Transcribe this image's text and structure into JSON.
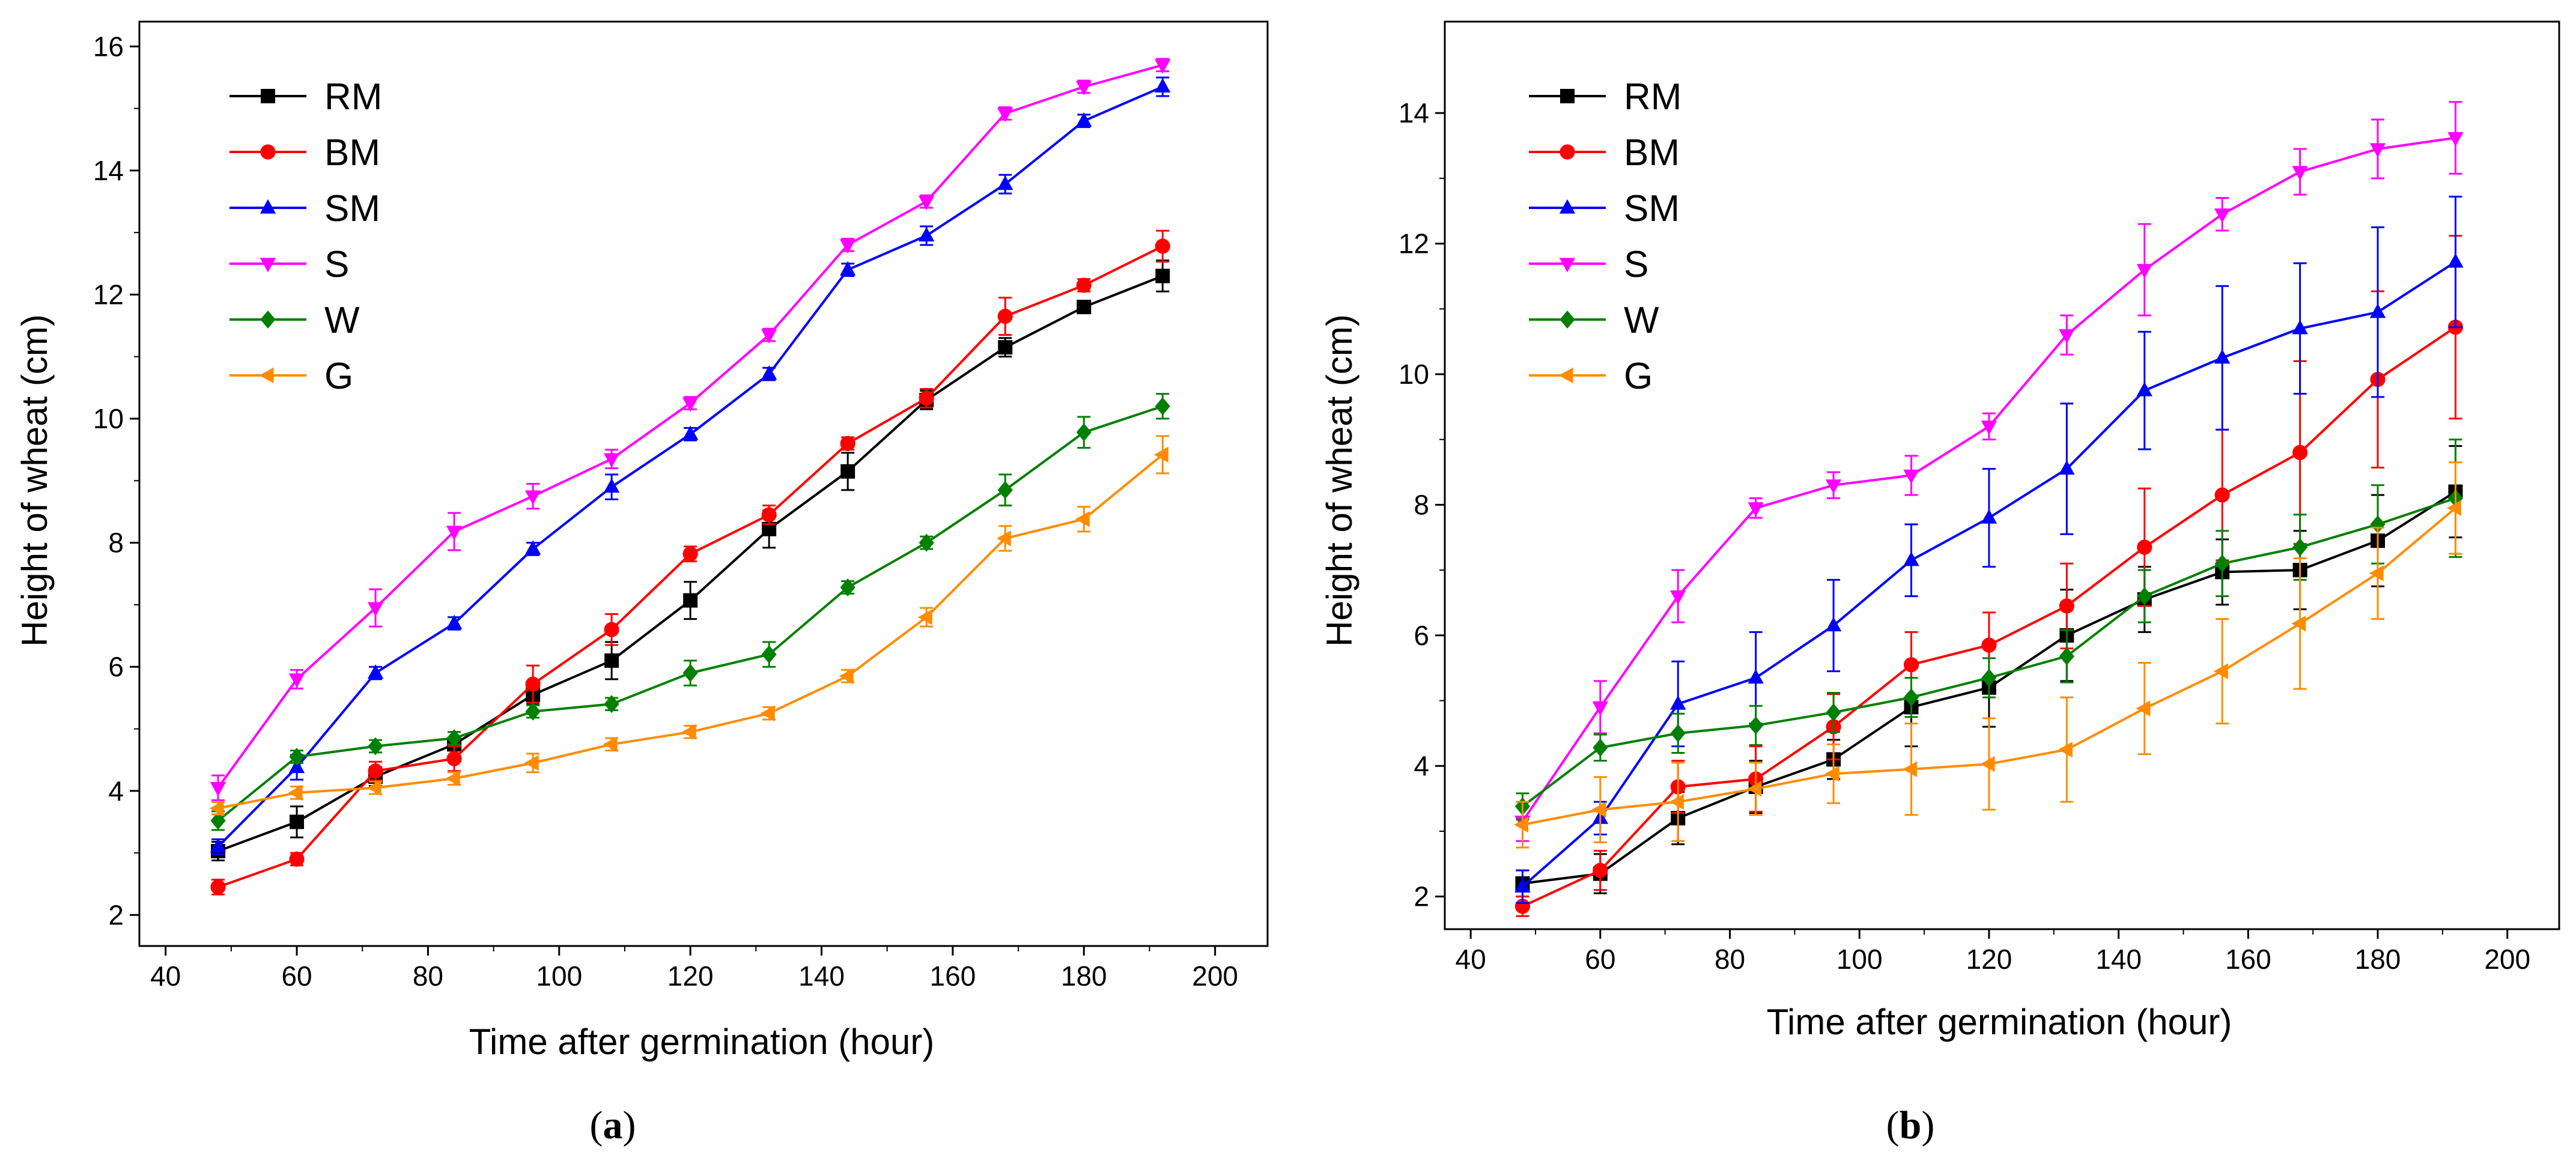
{
  "chart_data": [
    {
      "type": "line",
      "panel_label": "a",
      "xlabel": "Time after germination (hour)",
      "ylabel": "Height of wheat (cm)",
      "xlim": [
        36,
        208
      ],
      "ylim": [
        1.5,
        16.4
      ],
      "xticks": [
        40,
        60,
        80,
        100,
        120,
        140,
        160,
        180,
        200
      ],
      "yticks": [
        2,
        4,
        6,
        8,
        10,
        12,
        14,
        16
      ],
      "x": [
        48,
        60,
        72,
        84,
        96,
        108,
        120,
        132,
        144,
        156,
        168,
        180,
        192
      ],
      "series": [
        {
          "name": "RM",
          "color": "#000000",
          "marker": "square",
          "values": [
            3.03,
            3.5,
            4.23,
            4.75,
            5.55,
            6.1,
            7.07,
            8.22,
            9.15,
            10.3,
            11.15,
            11.8,
            12.3
          ],
          "errors": [
            0.15,
            0.25,
            0.15,
            0.1,
            0.15,
            0.3,
            0.3,
            0.3,
            0.3,
            0.15,
            0.15,
            0.1,
            0.25
          ]
        },
        {
          "name": "BM",
          "color": "#ff0000",
          "marker": "circle",
          "values": [
            2.45,
            2.9,
            4.32,
            4.52,
            5.72,
            6.6,
            7.82,
            8.45,
            9.6,
            10.33,
            11.65,
            12.15,
            12.78
          ],
          "errors": [
            0.12,
            0.1,
            0.15,
            0.2,
            0.3,
            0.25,
            0.12,
            0.15,
            0.1,
            0.15,
            0.3,
            0.1,
            0.25
          ]
        },
        {
          "name": "SM",
          "color": "#0000ff",
          "marker": "triangle-up",
          "values": [
            3.1,
            4.38,
            5.9,
            6.7,
            7.9,
            8.9,
            9.75,
            10.72,
            12.4,
            12.95,
            13.78,
            14.8,
            15.35
          ],
          "errors": [
            0.12,
            0.2,
            0.1,
            0.1,
            0.1,
            0.2,
            0.1,
            0.1,
            0.1,
            0.15,
            0.15,
            0.1,
            0.15
          ]
        },
        {
          "name": "S",
          "color": "#ff00ff",
          "marker": "triangle-down",
          "values": [
            4.05,
            5.8,
            6.95,
            8.18,
            8.75,
            9.35,
            10.25,
            11.35,
            12.8,
            13.5,
            14.92,
            15.35,
            15.7
          ],
          "errors": [
            0.2,
            0.15,
            0.3,
            0.3,
            0.2,
            0.15,
            0.1,
            0.1,
            0.1,
            0.1,
            0.1,
            0.1,
            0.1
          ]
        },
        {
          "name": "W",
          "color": "#008000",
          "marker": "diamond",
          "values": [
            3.52,
            4.55,
            4.72,
            4.85,
            5.28,
            5.4,
            5.9,
            6.2,
            7.28,
            8.0,
            8.85,
            9.78,
            10.2
          ],
          "errors": [
            0.15,
            0.1,
            0.1,
            0.1,
            0.1,
            0.1,
            0.2,
            0.2,
            0.1,
            0.1,
            0.25,
            0.25,
            0.2
          ]
        },
        {
          "name": "G",
          "color": "#ff8c00",
          "marker": "triangle-left",
          "values": [
            3.72,
            3.97,
            4.05,
            4.2,
            4.45,
            4.75,
            4.95,
            5.25,
            5.85,
            6.8,
            8.07,
            8.38,
            9.42
          ],
          "errors": [
            0.1,
            0.1,
            0.1,
            0.1,
            0.15,
            0.1,
            0.1,
            0.1,
            0.1,
            0.15,
            0.2,
            0.2,
            0.3
          ]
        }
      ]
    },
    {
      "type": "line",
      "panel_label": "b",
      "xlabel": "Time after germination (hour)",
      "ylabel": "Height of wheat (cm)",
      "xlim": [
        36,
        208
      ],
      "ylim": [
        1.5,
        15.4
      ],
      "xticks": [
        40,
        60,
        80,
        100,
        120,
        140,
        160,
        180,
        200
      ],
      "yticks": [
        2,
        4,
        6,
        8,
        10,
        12,
        14
      ],
      "x": [
        48,
        60,
        72,
        84,
        96,
        108,
        120,
        132,
        144,
        156,
        168,
        180,
        192
      ],
      "series": [
        {
          "name": "RM",
          "color": "#000000",
          "marker": "square",
          "values": [
            2.2,
            2.35,
            3.2,
            3.68,
            4.1,
            4.9,
            5.2,
            6.0,
            6.55,
            6.97,
            7.0,
            7.45,
            8.2
          ],
          "errors": [
            0.2,
            0.3,
            0.4,
            0.4,
            0.3,
            0.6,
            0.6,
            0.7,
            0.5,
            0.5,
            0.6,
            0.7,
            0.7
          ]
        },
        {
          "name": "BM",
          "color": "#ff0000",
          "marker": "circle",
          "values": [
            1.85,
            2.4,
            3.68,
            3.8,
            4.6,
            5.55,
            5.85,
            6.45,
            7.35,
            8.15,
            8.8,
            9.92,
            10.72
          ],
          "errors": [
            0.15,
            0.3,
            0.4,
            0.5,
            0.5,
            0.5,
            0.5,
            0.65,
            0.9,
            1.0,
            1.4,
            1.35,
            1.4
          ]
        },
        {
          "name": "SM",
          "color": "#0000ff",
          "marker": "triangle-up",
          "values": [
            2.15,
            3.2,
            4.95,
            5.35,
            6.15,
            7.15,
            7.8,
            8.55,
            9.75,
            10.25,
            10.7,
            10.95,
            11.72
          ],
          "errors": [
            0.25,
            0.25,
            0.65,
            0.7,
            0.7,
            0.55,
            0.75,
            1.0,
            0.9,
            1.1,
            1.0,
            1.3,
            1.0
          ]
        },
        {
          "name": "S",
          "color": "#ff00ff",
          "marker": "triangle-down",
          "values": [
            3.15,
            4.9,
            6.6,
            7.95,
            8.3,
            8.45,
            9.2,
            10.6,
            11.6,
            12.45,
            13.1,
            13.45,
            13.62
          ],
          "errors": [
            0.3,
            0.4,
            0.4,
            0.15,
            0.2,
            0.3,
            0.2,
            0.3,
            0.7,
            0.25,
            0.35,
            0.45,
            0.55
          ]
        },
        {
          "name": "W",
          "color": "#008000",
          "marker": "diamond",
          "values": [
            3.38,
            4.28,
            4.5,
            4.62,
            4.82,
            5.05,
            5.35,
            5.68,
            6.6,
            7.1,
            7.35,
            7.7,
            8.1
          ],
          "errors": [
            0.2,
            0.2,
            0.3,
            0.3,
            0.3,
            0.3,
            0.3,
            0.4,
            0.4,
            0.5,
            0.5,
            0.6,
            0.9
          ]
        },
        {
          "name": "G",
          "color": "#ff8c00",
          "marker": "triangle-left",
          "values": [
            3.1,
            3.33,
            3.45,
            3.65,
            3.88,
            3.95,
            4.03,
            4.25,
            4.88,
            5.45,
            6.18,
            6.95,
            7.95
          ],
          "errors": [
            0.35,
            0.5,
            0.6,
            0.4,
            0.45,
            0.7,
            0.7,
            0.8,
            0.7,
            0.8,
            1.0,
            0.7,
            0.7
          ]
        }
      ]
    }
  ],
  "captions": [
    {
      "open": "(",
      "label": "a",
      "close": ")"
    },
    {
      "open": "(",
      "label": "b",
      "close": ")"
    }
  ]
}
